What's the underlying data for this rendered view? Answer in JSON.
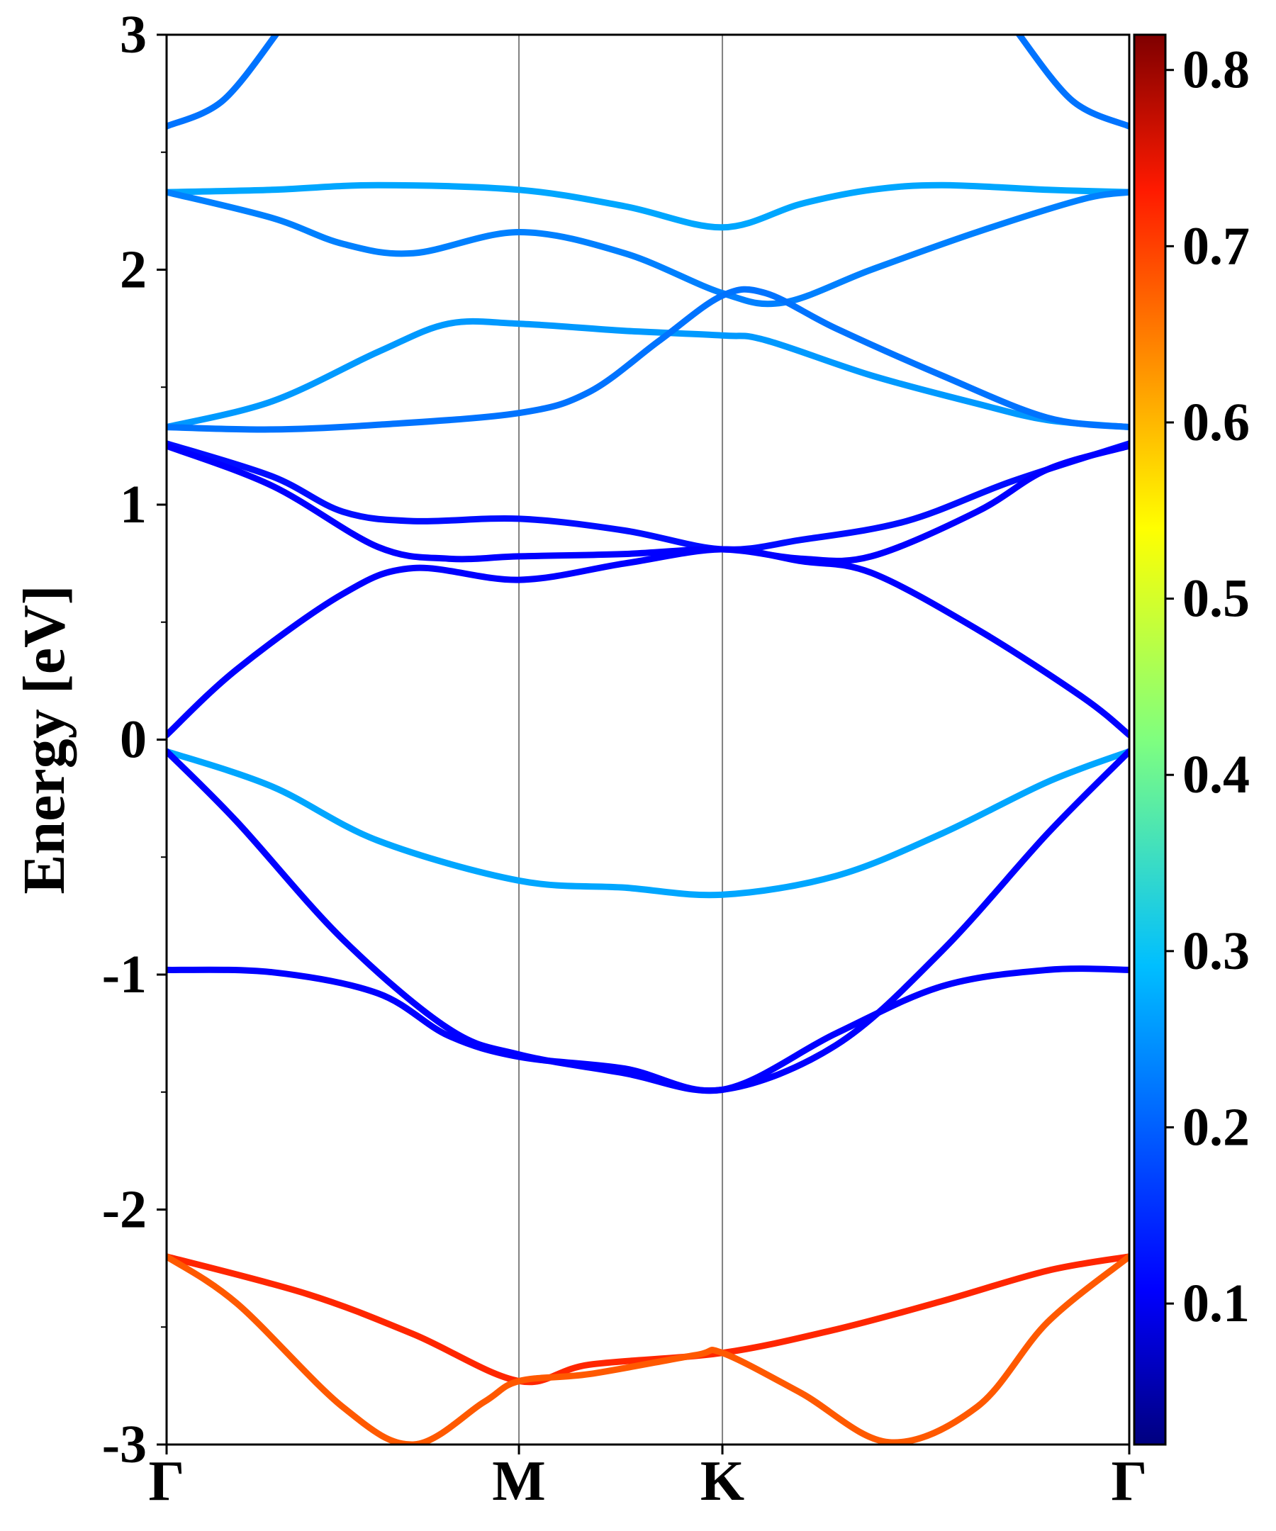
{
  "chart_data": {
    "type": "line",
    "title": "",
    "xlabel": "",
    "ylabel": "Energy [eV]",
    "ylim": [
      -3,
      3
    ],
    "yticks": [
      3,
      2,
      1,
      0,
      -1,
      -2,
      -3
    ],
    "yticks_minor": [
      2.5,
      1.5,
      0.5,
      -0.5,
      -1.5,
      -2.5
    ],
    "x_high_symmetry": [
      {
        "label": "Γ",
        "x": 0
      },
      {
        "label": "M",
        "x": 1.0
      },
      {
        "label": "K",
        "x": 1.5774
      },
      {
        "label": "Γ",
        "x": 2.7321
      }
    ],
    "xlim": [
      0,
      2.7321
    ],
    "grid": false,
    "colorbar": {
      "colormap": "jet",
      "range": [
        0.02,
        0.82
      ],
      "ticks": [
        0.8,
        0.7,
        0.6,
        0.5,
        0.4,
        0.3,
        0.2,
        0.1
      ]
    },
    "series": [
      {
        "color_value": 0.21,
        "points": [
          [
            0,
            2.61
          ],
          [
            0.16,
            2.72
          ],
          [
            0.32,
            3.02
          ]
        ]
      },
      {
        "color_value": 0.21,
        "points": [
          [
            2.7321,
            2.61
          ],
          [
            2.57,
            2.72
          ],
          [
            2.41,
            3.02
          ]
        ]
      },
      {
        "color_value": 0.25,
        "points": [
          [
            0,
            2.33
          ],
          [
            0.3,
            2.34
          ],
          [
            0.6,
            2.36
          ],
          [
            1.0,
            2.34
          ],
          [
            1.3,
            2.27
          ],
          [
            1.5774,
            2.18
          ],
          [
            1.8,
            2.28
          ],
          [
            2.0,
            2.34
          ],
          [
            2.2,
            2.36
          ],
          [
            2.5,
            2.34
          ],
          [
            2.7321,
            2.33
          ]
        ]
      },
      {
        "color_value": 0.22,
        "points": [
          [
            0,
            2.33
          ],
          [
            0.3,
            2.22
          ],
          [
            0.5,
            2.11
          ],
          [
            0.7,
            2.07
          ],
          [
            1.0,
            2.16
          ],
          [
            1.3,
            2.07
          ],
          [
            1.5774,
            1.9
          ],
          [
            1.75,
            1.86
          ],
          [
            2.0,
            2.0
          ],
          [
            2.3,
            2.16
          ],
          [
            2.6,
            2.3
          ],
          [
            2.7321,
            2.33
          ]
        ]
      },
      {
        "color_value": 0.24,
        "points": [
          [
            0,
            1.33
          ],
          [
            0.3,
            1.44
          ],
          [
            0.6,
            1.65
          ],
          [
            0.8,
            1.77
          ],
          [
            1.0,
            1.77
          ],
          [
            1.3,
            1.74
          ],
          [
            1.5774,
            1.72
          ],
          [
            1.7,
            1.7
          ],
          [
            2.0,
            1.55
          ],
          [
            2.3,
            1.43
          ],
          [
            2.5,
            1.36
          ],
          [
            2.7321,
            1.33
          ]
        ]
      },
      {
        "color_value": 0.21,
        "points": [
          [
            0,
            1.33
          ],
          [
            0.3,
            1.32
          ],
          [
            0.6,
            1.34
          ],
          [
            1.0,
            1.39
          ],
          [
            1.2,
            1.48
          ],
          [
            1.4,
            1.7
          ],
          [
            1.5774,
            1.89
          ],
          [
            1.7,
            1.9
          ],
          [
            1.9,
            1.75
          ],
          [
            2.2,
            1.55
          ],
          [
            2.5,
            1.37
          ],
          [
            2.7321,
            1.33
          ]
        ]
      },
      {
        "color_value": 0.13,
        "points": [
          [
            0,
            1.26
          ],
          [
            0.3,
            1.12
          ],
          [
            0.5,
            0.97
          ],
          [
            0.7,
            0.93
          ],
          [
            1.0,
            0.94
          ],
          [
            1.3,
            0.89
          ],
          [
            1.5774,
            0.81
          ],
          [
            1.8,
            0.85
          ],
          [
            2.1,
            0.93
          ],
          [
            2.4,
            1.1
          ],
          [
            2.7321,
            1.26
          ]
        ]
      },
      {
        "color_value": 0.12,
        "points": [
          [
            0,
            1.25
          ],
          [
            0.3,
            1.08
          ],
          [
            0.6,
            0.82
          ],
          [
            0.8,
            0.77
          ],
          [
            1.0,
            0.78
          ],
          [
            1.3,
            0.79
          ],
          [
            1.5774,
            0.81
          ],
          [
            1.8,
            0.77
          ],
          [
            2.0,
            0.78
          ],
          [
            2.3,
            0.97
          ],
          [
            2.5,
            1.15
          ],
          [
            2.7321,
            1.25
          ]
        ]
      },
      {
        "color_value": 0.12,
        "points": [
          [
            0,
            0.02
          ],
          [
            0.2,
            0.3
          ],
          [
            0.5,
            0.62
          ],
          [
            0.7,
            0.73
          ],
          [
            1.0,
            0.68
          ],
          [
            1.3,
            0.75
          ],
          [
            1.5774,
            0.81
          ],
          [
            1.8,
            0.76
          ],
          [
            2.0,
            0.71
          ],
          [
            2.3,
            0.47
          ],
          [
            2.6,
            0.18
          ],
          [
            2.7321,
            0.02
          ]
        ]
      },
      {
        "color_value": 0.25,
        "points": [
          [
            0,
            -0.05
          ],
          [
            0.3,
            -0.2
          ],
          [
            0.6,
            -0.43
          ],
          [
            1.0,
            -0.6
          ],
          [
            1.3,
            -0.63
          ],
          [
            1.5774,
            -0.66
          ],
          [
            1.9,
            -0.58
          ],
          [
            2.2,
            -0.4
          ],
          [
            2.5,
            -0.18
          ],
          [
            2.7321,
            -0.05
          ]
        ]
      },
      {
        "color_value": 0.12,
        "points": [
          [
            0,
            -0.05
          ],
          [
            0.2,
            -0.35
          ],
          [
            0.5,
            -0.85
          ],
          [
            0.8,
            -1.23
          ],
          [
            1.0,
            -1.34
          ],
          [
            1.3,
            -1.42
          ],
          [
            1.5774,
            -1.49
          ],
          [
            1.9,
            -1.3
          ],
          [
            2.2,
            -0.9
          ],
          [
            2.5,
            -0.4
          ],
          [
            2.7321,
            -0.05
          ]
        ]
      },
      {
        "color_value": 0.12,
        "points": [
          [
            0,
            -0.98
          ],
          [
            0.3,
            -0.99
          ],
          [
            0.6,
            -1.08
          ],
          [
            0.8,
            -1.26
          ],
          [
            1.0,
            -1.35
          ],
          [
            1.3,
            -1.4
          ],
          [
            1.5774,
            -1.49
          ],
          [
            1.9,
            -1.25
          ],
          [
            2.2,
            -1.05
          ],
          [
            2.5,
            -0.98
          ],
          [
            2.7321,
            -0.98
          ]
        ]
      },
      {
        "color_value": 0.69,
        "points": [
          [
            0,
            -2.2
          ],
          [
            0.4,
            -2.36
          ],
          [
            0.7,
            -2.53
          ],
          [
            1.0,
            -2.73
          ],
          [
            1.2,
            -2.66
          ],
          [
            1.5774,
            -2.61
          ],
          [
            1.9,
            -2.51
          ],
          [
            2.2,
            -2.39
          ],
          [
            2.5,
            -2.26
          ],
          [
            2.7321,
            -2.2
          ]
        ]
      },
      {
        "color_value": 0.65,
        "points": [
          [
            0,
            -2.2
          ],
          [
            0.2,
            -2.4
          ],
          [
            0.5,
            -2.84
          ],
          [
            0.7,
            -3.0
          ],
          [
            0.9,
            -2.82
          ],
          [
            1.0,
            -2.73
          ],
          [
            1.2,
            -2.7
          ],
          [
            1.5,
            -2.62
          ],
          [
            1.5774,
            -2.61
          ],
          [
            1.8,
            -2.78
          ],
          [
            2.05,
            -2.99
          ],
          [
            2.3,
            -2.84
          ],
          [
            2.5,
            -2.48
          ],
          [
            2.7321,
            -2.2
          ]
        ]
      }
    ]
  }
}
